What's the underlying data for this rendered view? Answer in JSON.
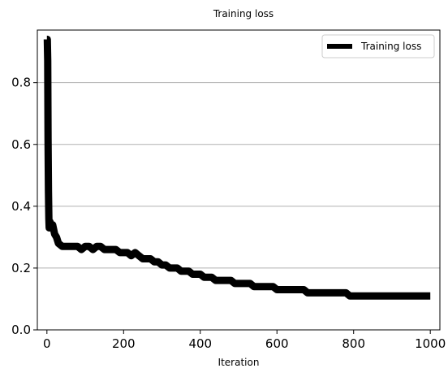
{
  "chart_data": {
    "type": "line",
    "title": "Training loss",
    "xlabel": "Iteration",
    "ylabel": "",
    "xlim": [
      -25,
      1025
    ],
    "ylim": [
      0,
      0.97
    ],
    "xticks": [
      0,
      200,
      400,
      600,
      800,
      1000
    ],
    "yticks": [
      0.0,
      0.2,
      0.4,
      0.6,
      0.8
    ],
    "xtick_labels": [
      "0",
      "200",
      "400",
      "600",
      "800",
      "1000"
    ],
    "ytick_labels": [
      "0.0",
      "0.2",
      "0.4",
      "0.6",
      "0.8"
    ],
    "grid": "horizontal",
    "legend_position": "top-right",
    "colors": {
      "series": "#000000",
      "grid": "#b0b0b0",
      "axis": "#000000"
    },
    "series": [
      {
        "name": "Training loss",
        "x": [
          0,
          1,
          2,
          3,
          4,
          5,
          6,
          8,
          10,
          15,
          20,
          25,
          30,
          40,
          50,
          60,
          70,
          80,
          90,
          100,
          110,
          120,
          130,
          140,
          150,
          160,
          170,
          180,
          190,
          200,
          210,
          220,
          230,
          240,
          250,
          260,
          270,
          280,
          290,
          300,
          310,
          320,
          330,
          340,
          350,
          360,
          370,
          380,
          390,
          400,
          410,
          420,
          430,
          440,
          450,
          460,
          470,
          480,
          490,
          500,
          510,
          520,
          530,
          540,
          550,
          560,
          570,
          580,
          590,
          600,
          610,
          620,
          630,
          640,
          650,
          660,
          670,
          680,
          690,
          700,
          710,
          720,
          730,
          740,
          750,
          760,
          770,
          780,
          790,
          800,
          810,
          820,
          830,
          840,
          850,
          860,
          870,
          880,
          890,
          900,
          910,
          920,
          930,
          940,
          950,
          960,
          970,
          980,
          990,
          1000
        ],
        "values": [
          0.94,
          0.94,
          0.87,
          0.62,
          0.45,
          0.36,
          0.33,
          0.35,
          0.33,
          0.34,
          0.31,
          0.3,
          0.28,
          0.27,
          0.27,
          0.27,
          0.27,
          0.27,
          0.26,
          0.27,
          0.27,
          0.26,
          0.27,
          0.27,
          0.26,
          0.26,
          0.26,
          0.26,
          0.25,
          0.25,
          0.25,
          0.24,
          0.25,
          0.24,
          0.23,
          0.23,
          0.23,
          0.22,
          0.22,
          0.21,
          0.21,
          0.2,
          0.2,
          0.2,
          0.19,
          0.19,
          0.19,
          0.18,
          0.18,
          0.18,
          0.17,
          0.17,
          0.17,
          0.16,
          0.16,
          0.16,
          0.16,
          0.16,
          0.15,
          0.15,
          0.15,
          0.15,
          0.15,
          0.14,
          0.14,
          0.14,
          0.14,
          0.14,
          0.14,
          0.13,
          0.13,
          0.13,
          0.13,
          0.13,
          0.13,
          0.13,
          0.13,
          0.12,
          0.12,
          0.12,
          0.12,
          0.12,
          0.12,
          0.12,
          0.12,
          0.12,
          0.12,
          0.12,
          0.11,
          0.11,
          0.11,
          0.11,
          0.11,
          0.11,
          0.11,
          0.11,
          0.11,
          0.11,
          0.11,
          0.11,
          0.11,
          0.11,
          0.11,
          0.11,
          0.11,
          0.11,
          0.11,
          0.11,
          0.11,
          0.11
        ]
      }
    ]
  }
}
